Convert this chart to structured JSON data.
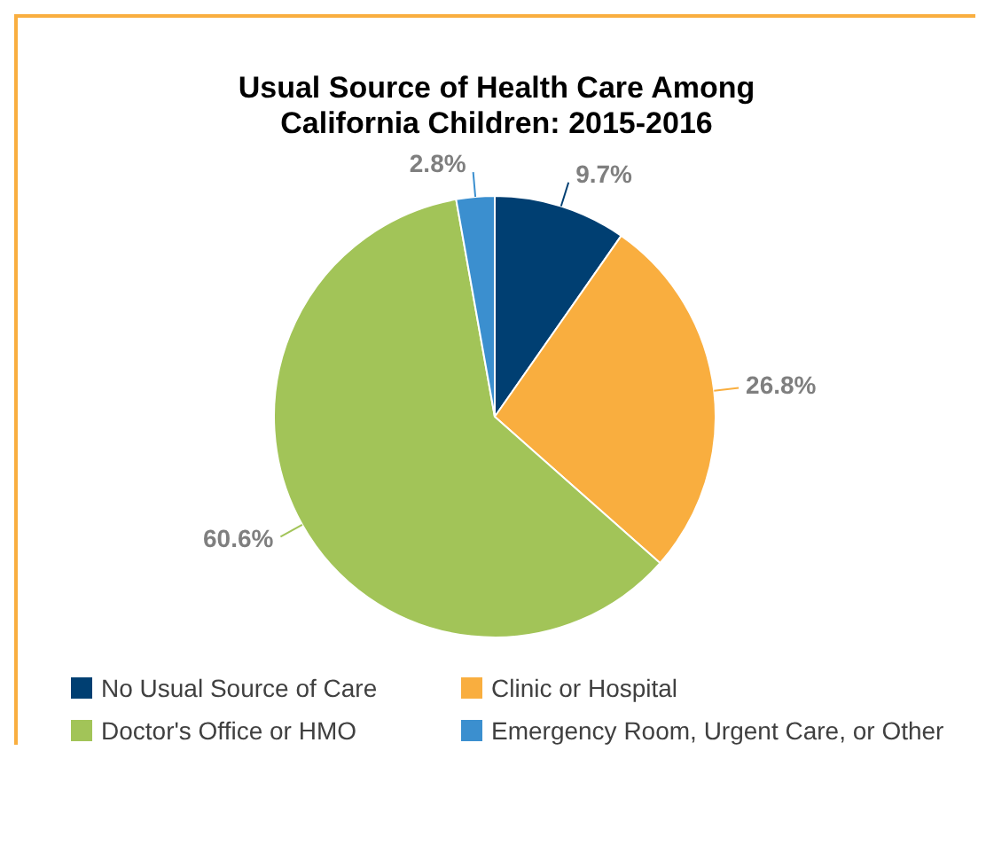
{
  "chart_data": {
    "type": "pie",
    "title": "Usual Source of Health Care Among California Children: 2015-2016",
    "categories": [
      "No Usual Source of Care",
      "Clinic or Hospital",
      "Doctor's Office or HMO",
      "Emergency Room, Urgent Care, or Other"
    ],
    "values": [
      9.7,
      26.8,
      60.6,
      2.8
    ],
    "colors": [
      "#003f72",
      "#f9ae3f",
      "#a2c458",
      "#3b8fcf"
    ],
    "value_labels": [
      "9.7%",
      "26.8%",
      "60.6%",
      "2.8%"
    ],
    "legend": "bottom"
  }
}
